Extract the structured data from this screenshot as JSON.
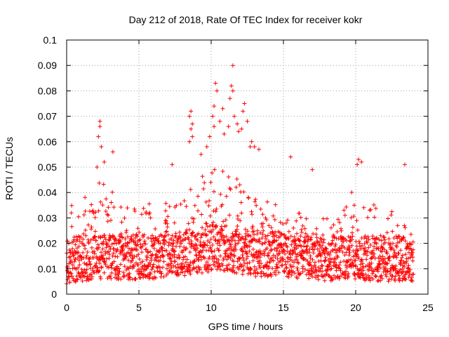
{
  "chart_data": {
    "type": "scatter",
    "title": "Day 212 of 2018, Rate Of TEC Index for receiver kokr",
    "xlabel": "GPS time / hours",
    "ylabel": "ROTI / TECUs",
    "xlim": [
      0,
      25
    ],
    "ylim": [
      0,
      0.1
    ],
    "x_ticks": [
      "0",
      "5",
      "10",
      "15",
      "20",
      "25"
    ],
    "y_ticks": [
      "0",
      "0.01",
      "0.02",
      "0.03",
      "0.04",
      "0.05",
      "0.06",
      "0.07",
      "0.08",
      "0.09",
      "0.1"
    ],
    "grid": true,
    "marker": "plus",
    "color": "#ff0000",
    "envelope": {
      "description_hours": [
        0,
        1,
        2,
        3,
        4,
        5,
        6,
        7,
        8,
        9,
        10,
        11,
        12,
        13,
        14,
        15,
        16,
        17,
        18,
        19,
        20,
        21,
        22,
        23,
        24
      ],
      "baseline": [
        0.01,
        0.011,
        0.012,
        0.012,
        0.011,
        0.012,
        0.012,
        0.013,
        0.013,
        0.014,
        0.015,
        0.015,
        0.014,
        0.013,
        0.013,
        0.013,
        0.012,
        0.012,
        0.011,
        0.012,
        0.012,
        0.011,
        0.011,
        0.011,
        0.01
      ],
      "upper": [
        0.033,
        0.04,
        0.045,
        0.042,
        0.036,
        0.035,
        0.038,
        0.036,
        0.04,
        0.045,
        0.052,
        0.055,
        0.048,
        0.04,
        0.036,
        0.035,
        0.034,
        0.033,
        0.034,
        0.04,
        0.042,
        0.036,
        0.033,
        0.034,
        0.032
      ]
    },
    "outliers": [
      {
        "x": 2.3,
        "y": 0.068
      },
      {
        "x": 2.3,
        "y": 0.066
      },
      {
        "x": 2.2,
        "y": 0.062
      },
      {
        "x": 2.4,
        "y": 0.058
      },
      {
        "x": 3.2,
        "y": 0.056
      },
      {
        "x": 2.6,
        "y": 0.052
      },
      {
        "x": 2.1,
        "y": 0.05
      },
      {
        "x": 8.6,
        "y": 0.072
      },
      {
        "x": 8.5,
        "y": 0.07
      },
      {
        "x": 8.7,
        "y": 0.067
      },
      {
        "x": 8.6,
        "y": 0.065
      },
      {
        "x": 8.7,
        "y": 0.062
      },
      {
        "x": 8.5,
        "y": 0.06
      },
      {
        "x": 10.3,
        "y": 0.083
      },
      {
        "x": 10.4,
        "y": 0.08
      },
      {
        "x": 10.2,
        "y": 0.074
      },
      {
        "x": 10.8,
        "y": 0.073
      },
      {
        "x": 10.1,
        "y": 0.07
      },
      {
        "x": 10.6,
        "y": 0.068
      },
      {
        "x": 10.2,
        "y": 0.066
      },
      {
        "x": 10.9,
        "y": 0.063
      },
      {
        "x": 11.5,
        "y": 0.09
      },
      {
        "x": 11.4,
        "y": 0.082
      },
      {
        "x": 11.5,
        "y": 0.08
      },
      {
        "x": 11.3,
        "y": 0.077
      },
      {
        "x": 11.6,
        "y": 0.07
      },
      {
        "x": 11.8,
        "y": 0.067
      },
      {
        "x": 11.2,
        "y": 0.066
      },
      {
        "x": 11.9,
        "y": 0.064
      },
      {
        "x": 12.3,
        "y": 0.075
      },
      {
        "x": 12.2,
        "y": 0.072
      },
      {
        "x": 12.5,
        "y": 0.068
      },
      {
        "x": 12.1,
        "y": 0.065
      },
      {
        "x": 12.8,
        "y": 0.06
      },
      {
        "x": 13.0,
        "y": 0.058
      },
      {
        "x": 13.3,
        "y": 0.057
      },
      {
        "x": 12.7,
        "y": 0.058
      },
      {
        "x": 7.3,
        "y": 0.051
      },
      {
        "x": 9.3,
        "y": 0.055
      },
      {
        "x": 9.7,
        "y": 0.058
      },
      {
        "x": 9.9,
        "y": 0.062
      },
      {
        "x": 15.5,
        "y": 0.054
      },
      {
        "x": 17.0,
        "y": 0.049
      },
      {
        "x": 20.2,
        "y": 0.053
      },
      {
        "x": 20.4,
        "y": 0.052
      },
      {
        "x": 20.1,
        "y": 0.051
      },
      {
        "x": 23.4,
        "y": 0.051
      }
    ]
  }
}
